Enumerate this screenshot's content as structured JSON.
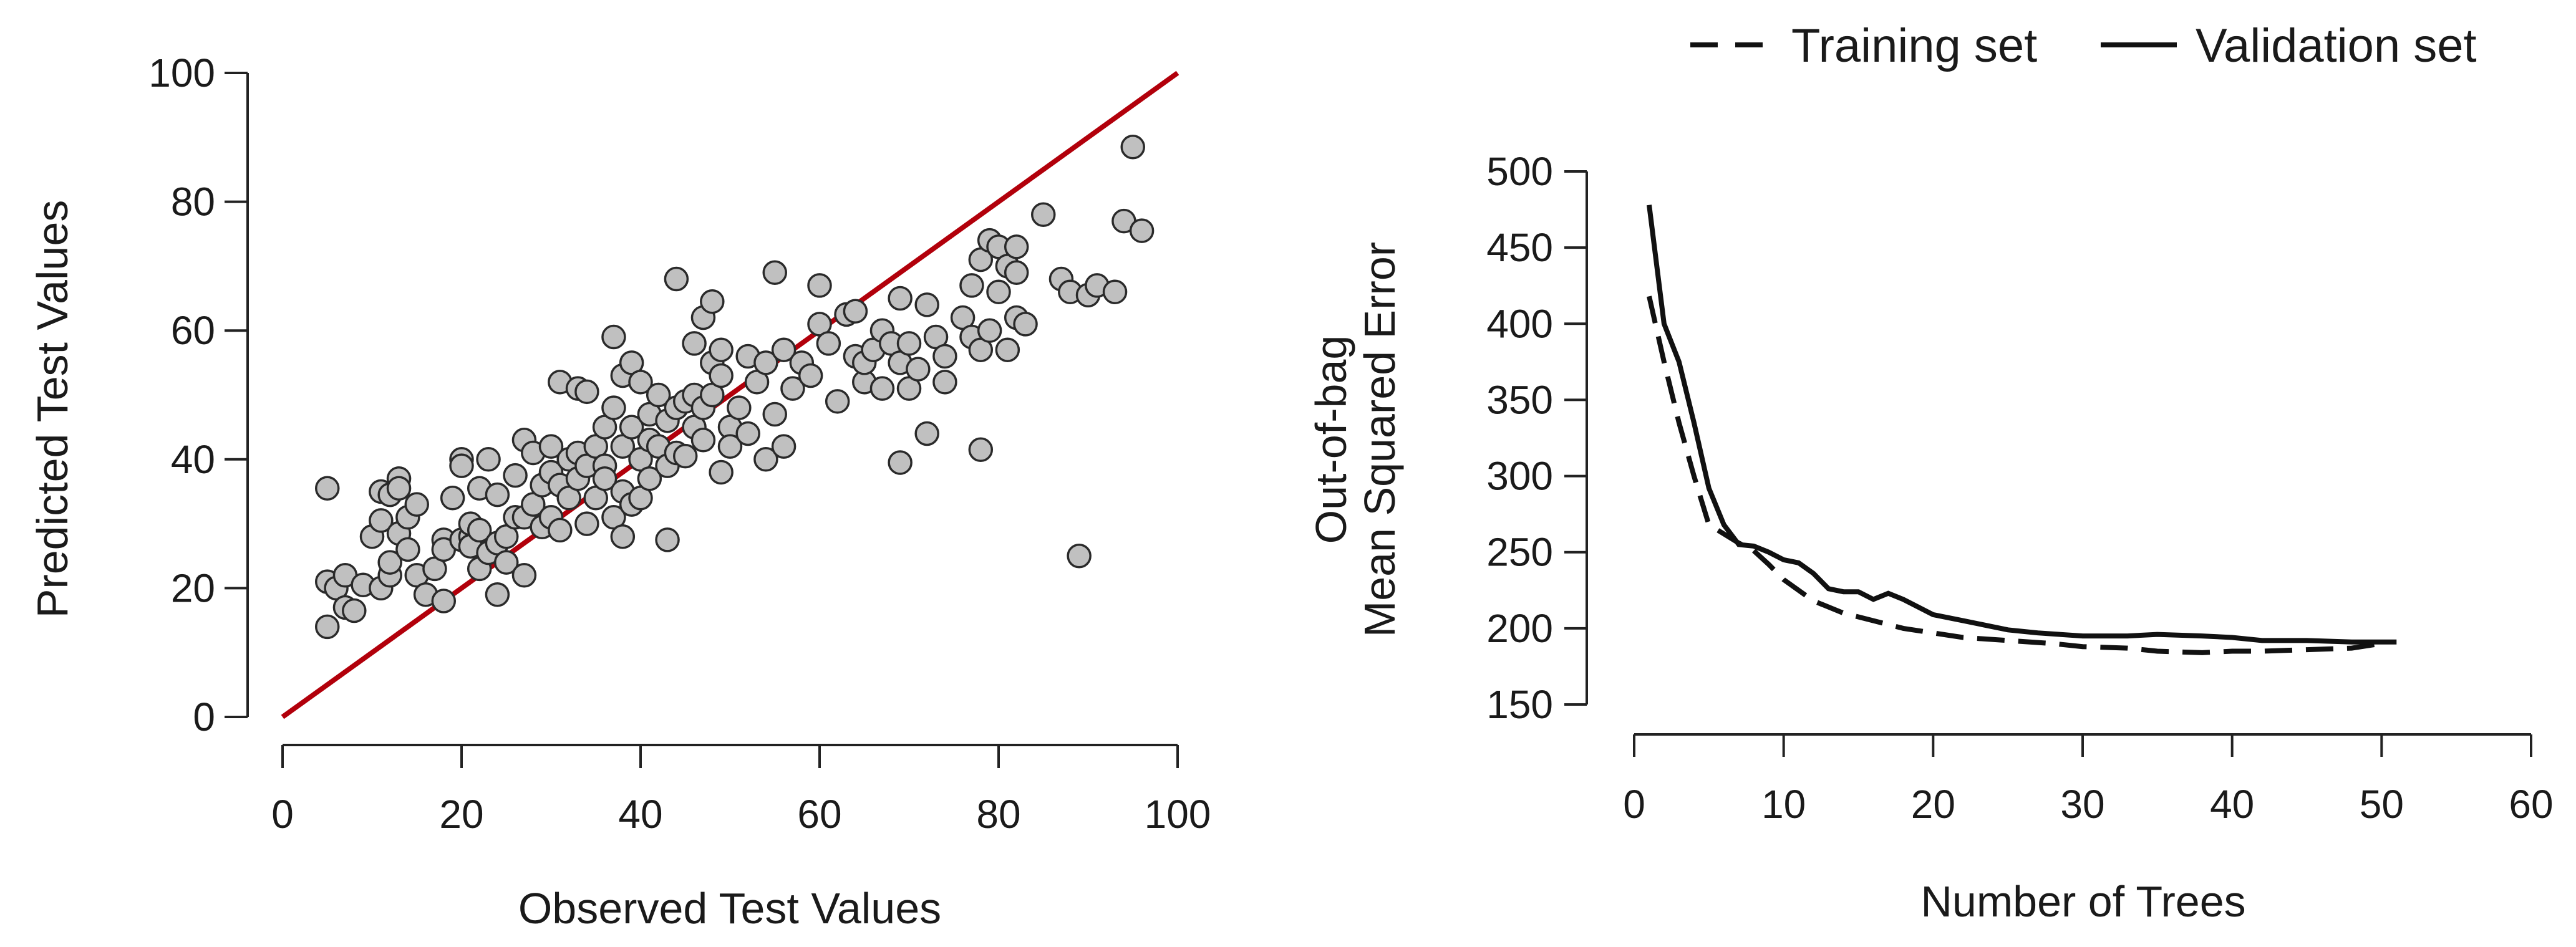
{
  "chart_data": [
    {
      "type": "scatter",
      "title": "",
      "xlabel": "Observed Test Values",
      "ylabel": "Predicted Test Values",
      "xlim": [
        0,
        100
      ],
      "ylim": [
        0,
        100
      ],
      "xticks": [
        0,
        20,
        40,
        60,
        80,
        100
      ],
      "yticks": [
        0,
        20,
        40,
        60,
        80,
        100
      ],
      "reference_line": {
        "from": [
          0,
          0
        ],
        "to": [
          100,
          100
        ],
        "color": "#b2000b"
      },
      "point_color": "#c0c0c0",
      "points": [
        [
          5,
          35.5
        ],
        [
          5,
          21
        ],
        [
          5,
          14
        ],
        [
          6,
          20
        ],
        [
          7,
          17
        ],
        [
          7,
          22
        ],
        [
          8,
          16.5
        ],
        [
          9,
          20.5
        ],
        [
          10,
          28
        ],
        [
          11,
          30.5
        ],
        [
          11,
          35
        ],
        [
          11,
          20
        ],
        [
          12,
          22
        ],
        [
          12,
          34.5
        ],
        [
          12,
          24
        ],
        [
          13,
          37
        ],
        [
          13,
          35.5
        ],
        [
          13,
          28.5
        ],
        [
          14,
          31
        ],
        [
          14,
          26
        ],
        [
          15,
          33
        ],
        [
          15,
          22
        ],
        [
          16,
          19
        ],
        [
          17,
          23
        ],
        [
          18,
          18
        ],
        [
          18,
          27.5
        ],
        [
          18,
          26
        ],
        [
          19,
          34
        ],
        [
          20,
          27.5
        ],
        [
          20,
          40
        ],
        [
          20,
          39
        ],
        [
          21,
          28
        ],
        [
          21,
          30
        ],
        [
          21,
          26.5
        ],
        [
          22,
          23
        ],
        [
          22,
          29
        ],
        [
          22,
          35.5
        ],
        [
          23,
          40
        ],
        [
          23,
          25.5
        ],
        [
          24,
          27
        ],
        [
          24,
          19
        ],
        [
          24,
          34.5
        ],
        [
          25,
          24
        ],
        [
          25,
          28
        ],
        [
          26,
          31
        ],
        [
          26,
          37.5
        ],
        [
          27,
          43
        ],
        [
          27,
          31
        ],
        [
          27,
          22
        ],
        [
          28,
          41
        ],
        [
          28,
          33
        ],
        [
          29,
          29.5
        ],
        [
          29,
          36
        ],
        [
          30,
          42
        ],
        [
          30,
          31
        ],
        [
          30,
          38
        ],
        [
          31,
          52
        ],
        [
          31,
          29
        ],
        [
          31,
          36
        ],
        [
          32,
          40
        ],
        [
          32,
          34
        ],
        [
          33,
          51
        ],
        [
          33,
          41
        ],
        [
          33,
          37
        ],
        [
          34,
          50.5
        ],
        [
          34,
          39
        ],
        [
          34,
          30
        ],
        [
          35,
          42
        ],
        [
          35,
          34
        ],
        [
          36,
          39
        ],
        [
          36,
          45
        ],
        [
          36,
          37
        ],
        [
          37,
          59
        ],
        [
          37,
          48
        ],
        [
          37,
          31
        ],
        [
          38,
          35
        ],
        [
          38,
          42
        ],
        [
          38,
          53
        ],
        [
          38,
          28
        ],
        [
          39,
          33
        ],
        [
          39,
          45
        ],
        [
          39,
          55
        ],
        [
          40,
          52
        ],
        [
          40,
          40
        ],
        [
          40,
          34
        ],
        [
          41,
          47
        ],
        [
          41,
          43
        ],
        [
          41,
          37
        ],
        [
          42,
          50
        ],
        [
          42,
          42
        ],
        [
          43,
          39
        ],
        [
          43,
          46
        ],
        [
          43,
          27.5
        ],
        [
          44,
          68
        ],
        [
          44,
          48
        ],
        [
          44,
          41
        ],
        [
          45,
          49
        ],
        [
          45,
          40.5
        ],
        [
          46,
          58
        ],
        [
          46,
          45
        ],
        [
          46,
          50
        ],
        [
          47,
          62
        ],
        [
          47,
          48
        ],
        [
          47,
          43
        ],
        [
          48,
          64.5
        ],
        [
          48,
          55
        ],
        [
          48,
          50
        ],
        [
          49,
          57
        ],
        [
          49,
          53
        ],
        [
          49,
          38
        ],
        [
          50,
          45
        ],
        [
          50,
          42
        ],
        [
          51,
          48
        ],
        [
          52,
          56
        ],
        [
          52,
          44
        ],
        [
          53,
          52
        ],
        [
          54,
          40
        ],
        [
          54,
          55
        ],
        [
          55,
          69
        ],
        [
          55,
          47
        ],
        [
          56,
          57
        ],
        [
          56,
          42
        ],
        [
          57,
          51
        ],
        [
          58,
          55
        ],
        [
          59,
          53
        ],
        [
          60,
          61
        ],
        [
          60,
          67
        ],
        [
          61,
          58
        ],
        [
          62,
          49
        ],
        [
          63,
          62.5
        ],
        [
          64,
          56
        ],
        [
          64,
          63
        ],
        [
          65,
          52
        ],
        [
          65,
          55
        ],
        [
          66,
          57
        ],
        [
          67,
          60
        ],
        [
          67,
          51
        ],
        [
          68,
          58
        ],
        [
          69,
          65
        ],
        [
          69,
          39.5
        ],
        [
          69,
          55
        ],
        [
          70,
          58
        ],
        [
          70,
          51
        ],
        [
          71,
          54
        ],
        [
          72,
          44
        ],
        [
          72,
          64
        ],
        [
          73,
          59
        ],
        [
          74,
          52
        ],
        [
          74,
          56
        ],
        [
          76,
          62
        ],
        [
          77,
          59
        ],
        [
          77,
          67
        ],
        [
          78,
          71
        ],
        [
          78,
          41.5
        ],
        [
          78,
          57
        ],
        [
          79,
          74
        ],
        [
          79,
          60
        ],
        [
          80,
          73
        ],
        [
          80,
          66
        ],
        [
          81,
          70
        ],
        [
          81,
          57
        ],
        [
          82,
          73
        ],
        [
          82,
          69
        ],
        [
          82,
          62
        ],
        [
          83,
          61
        ],
        [
          85,
          78
        ],
        [
          87,
          68
        ],
        [
          88,
          66
        ],
        [
          89,
          25
        ],
        [
          90,
          65.5
        ],
        [
          91,
          67
        ],
        [
          93,
          66
        ],
        [
          94,
          77
        ],
        [
          95,
          88.5
        ],
        [
          96,
          75.5
        ]
      ]
    },
    {
      "type": "line",
      "title": "",
      "xlabel": "Number of Trees",
      "ylabel": [
        "Out-of-bag",
        "Mean Squared Error"
      ],
      "xlim": [
        0,
        60
      ],
      "ylim": [
        150,
        500
      ],
      "xticks": [
        0,
        10,
        20,
        30,
        40,
        50,
        60
      ],
      "yticks": [
        150,
        200,
        250,
        300,
        350,
        400,
        450,
        500
      ],
      "legend": {
        "placement": "top",
        "items": [
          "Training set",
          "Validation set"
        ]
      },
      "series": [
        {
          "name": "Training set",
          "style": "dashed",
          "x": [
            1,
            2,
            3,
            4,
            5,
            6,
            7,
            8,
            9,
            10,
            12,
            14,
            16,
            18,
            20,
            22,
            25,
            28,
            30,
            33,
            35,
            38,
            40,
            42,
            45,
            48,
            50
          ],
          "values": [
            418,
            375,
            335,
            300,
            268,
            262,
            256,
            251,
            242,
            232,
            218,
            210,
            205,
            200,
            197,
            194,
            192,
            190,
            188,
            187,
            185,
            184,
            185,
            185,
            186,
            187,
            190
          ]
        },
        {
          "name": "Validation set",
          "style": "solid",
          "x": [
            1,
            2,
            3,
            4,
            5,
            6,
            7,
            8,
            9,
            10,
            11,
            12,
            13,
            14,
            15,
            16,
            17,
            18,
            19,
            20,
            22,
            25,
            27,
            30,
            33,
            35,
            38,
            40,
            42,
            45,
            48,
            50,
            51
          ],
          "values": [
            478,
            400,
            375,
            335,
            292,
            268,
            255,
            254,
            250,
            245,
            243,
            236,
            226,
            224,
            224,
            219,
            223,
            219,
            214,
            209,
            205,
            199,
            197,
            195,
            195,
            196,
            195,
            194,
            192,
            192,
            191,
            191,
            191
          ]
        }
      ]
    }
  ]
}
